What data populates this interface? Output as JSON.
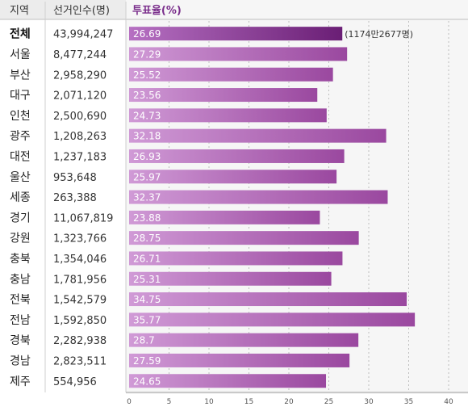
{
  "chart_data": {
    "type": "bar",
    "orientation": "horizontal",
    "headers": {
      "region": "지역",
      "voters": "선거인수(명)",
      "turnout": "투표율(%)"
    },
    "rows": [
      {
        "region": "전체",
        "voters": "43,994,247",
        "turnout": 26.69,
        "label": "26.69",
        "note": "(1174만2677명)",
        "emphasis": true
      },
      {
        "region": "서울",
        "voters": "8,477,244",
        "turnout": 27.29,
        "label": "27.29"
      },
      {
        "region": "부산",
        "voters": "2,958,290",
        "turnout": 25.52,
        "label": "25.52"
      },
      {
        "region": "대구",
        "voters": "2,071,120",
        "turnout": 23.56,
        "label": "23.56"
      },
      {
        "region": "인천",
        "voters": "2,500,690",
        "turnout": 24.73,
        "label": "24.73"
      },
      {
        "region": "광주",
        "voters": "1,208,263",
        "turnout": 32.18,
        "label": "32.18"
      },
      {
        "region": "대전",
        "voters": "1,237,183",
        "turnout": 26.93,
        "label": "26.93"
      },
      {
        "region": "울산",
        "voters": "953,648",
        "turnout": 25.97,
        "label": "25.97"
      },
      {
        "region": "세종",
        "voters": "263,388",
        "turnout": 32.37,
        "label": "32.37"
      },
      {
        "region": "경기",
        "voters": "11,067,819",
        "turnout": 23.88,
        "label": "23.88"
      },
      {
        "region": "강원",
        "voters": "1,323,766",
        "turnout": 28.75,
        "label": "28.75"
      },
      {
        "region": "충북",
        "voters": "1,354,046",
        "turnout": 26.71,
        "label": "26.71"
      },
      {
        "region": "충남",
        "voters": "1,781,956",
        "turnout": 25.31,
        "label": "25.31"
      },
      {
        "region": "전북",
        "voters": "1,542,579",
        "turnout": 34.75,
        "label": "34.75"
      },
      {
        "region": "전남",
        "voters": "1,592,850",
        "turnout": 35.77,
        "label": "35.77"
      },
      {
        "region": "경북",
        "voters": "2,282,938",
        "turnout": 28.7,
        "label": "28.7"
      },
      {
        "region": "경남",
        "voters": "2,823,511",
        "turnout": 27.59,
        "label": "27.59"
      },
      {
        "region": "제주",
        "voters": "554,956",
        "turnout": 24.65,
        "label": "24.65"
      }
    ],
    "xlim": [
      0,
      40
    ],
    "xticks": [
      0,
      5,
      10,
      15,
      20,
      25,
      30,
      35,
      40
    ],
    "grid": true,
    "colors": {
      "bar_light": "#d09ad6",
      "bar_dark": "#9a489f",
      "bar_total_light": "#b670c2",
      "bar_total_dark": "#6a1e75",
      "header_turnout": "#7b2f8c",
      "header_bg": "#ececec"
    }
  }
}
